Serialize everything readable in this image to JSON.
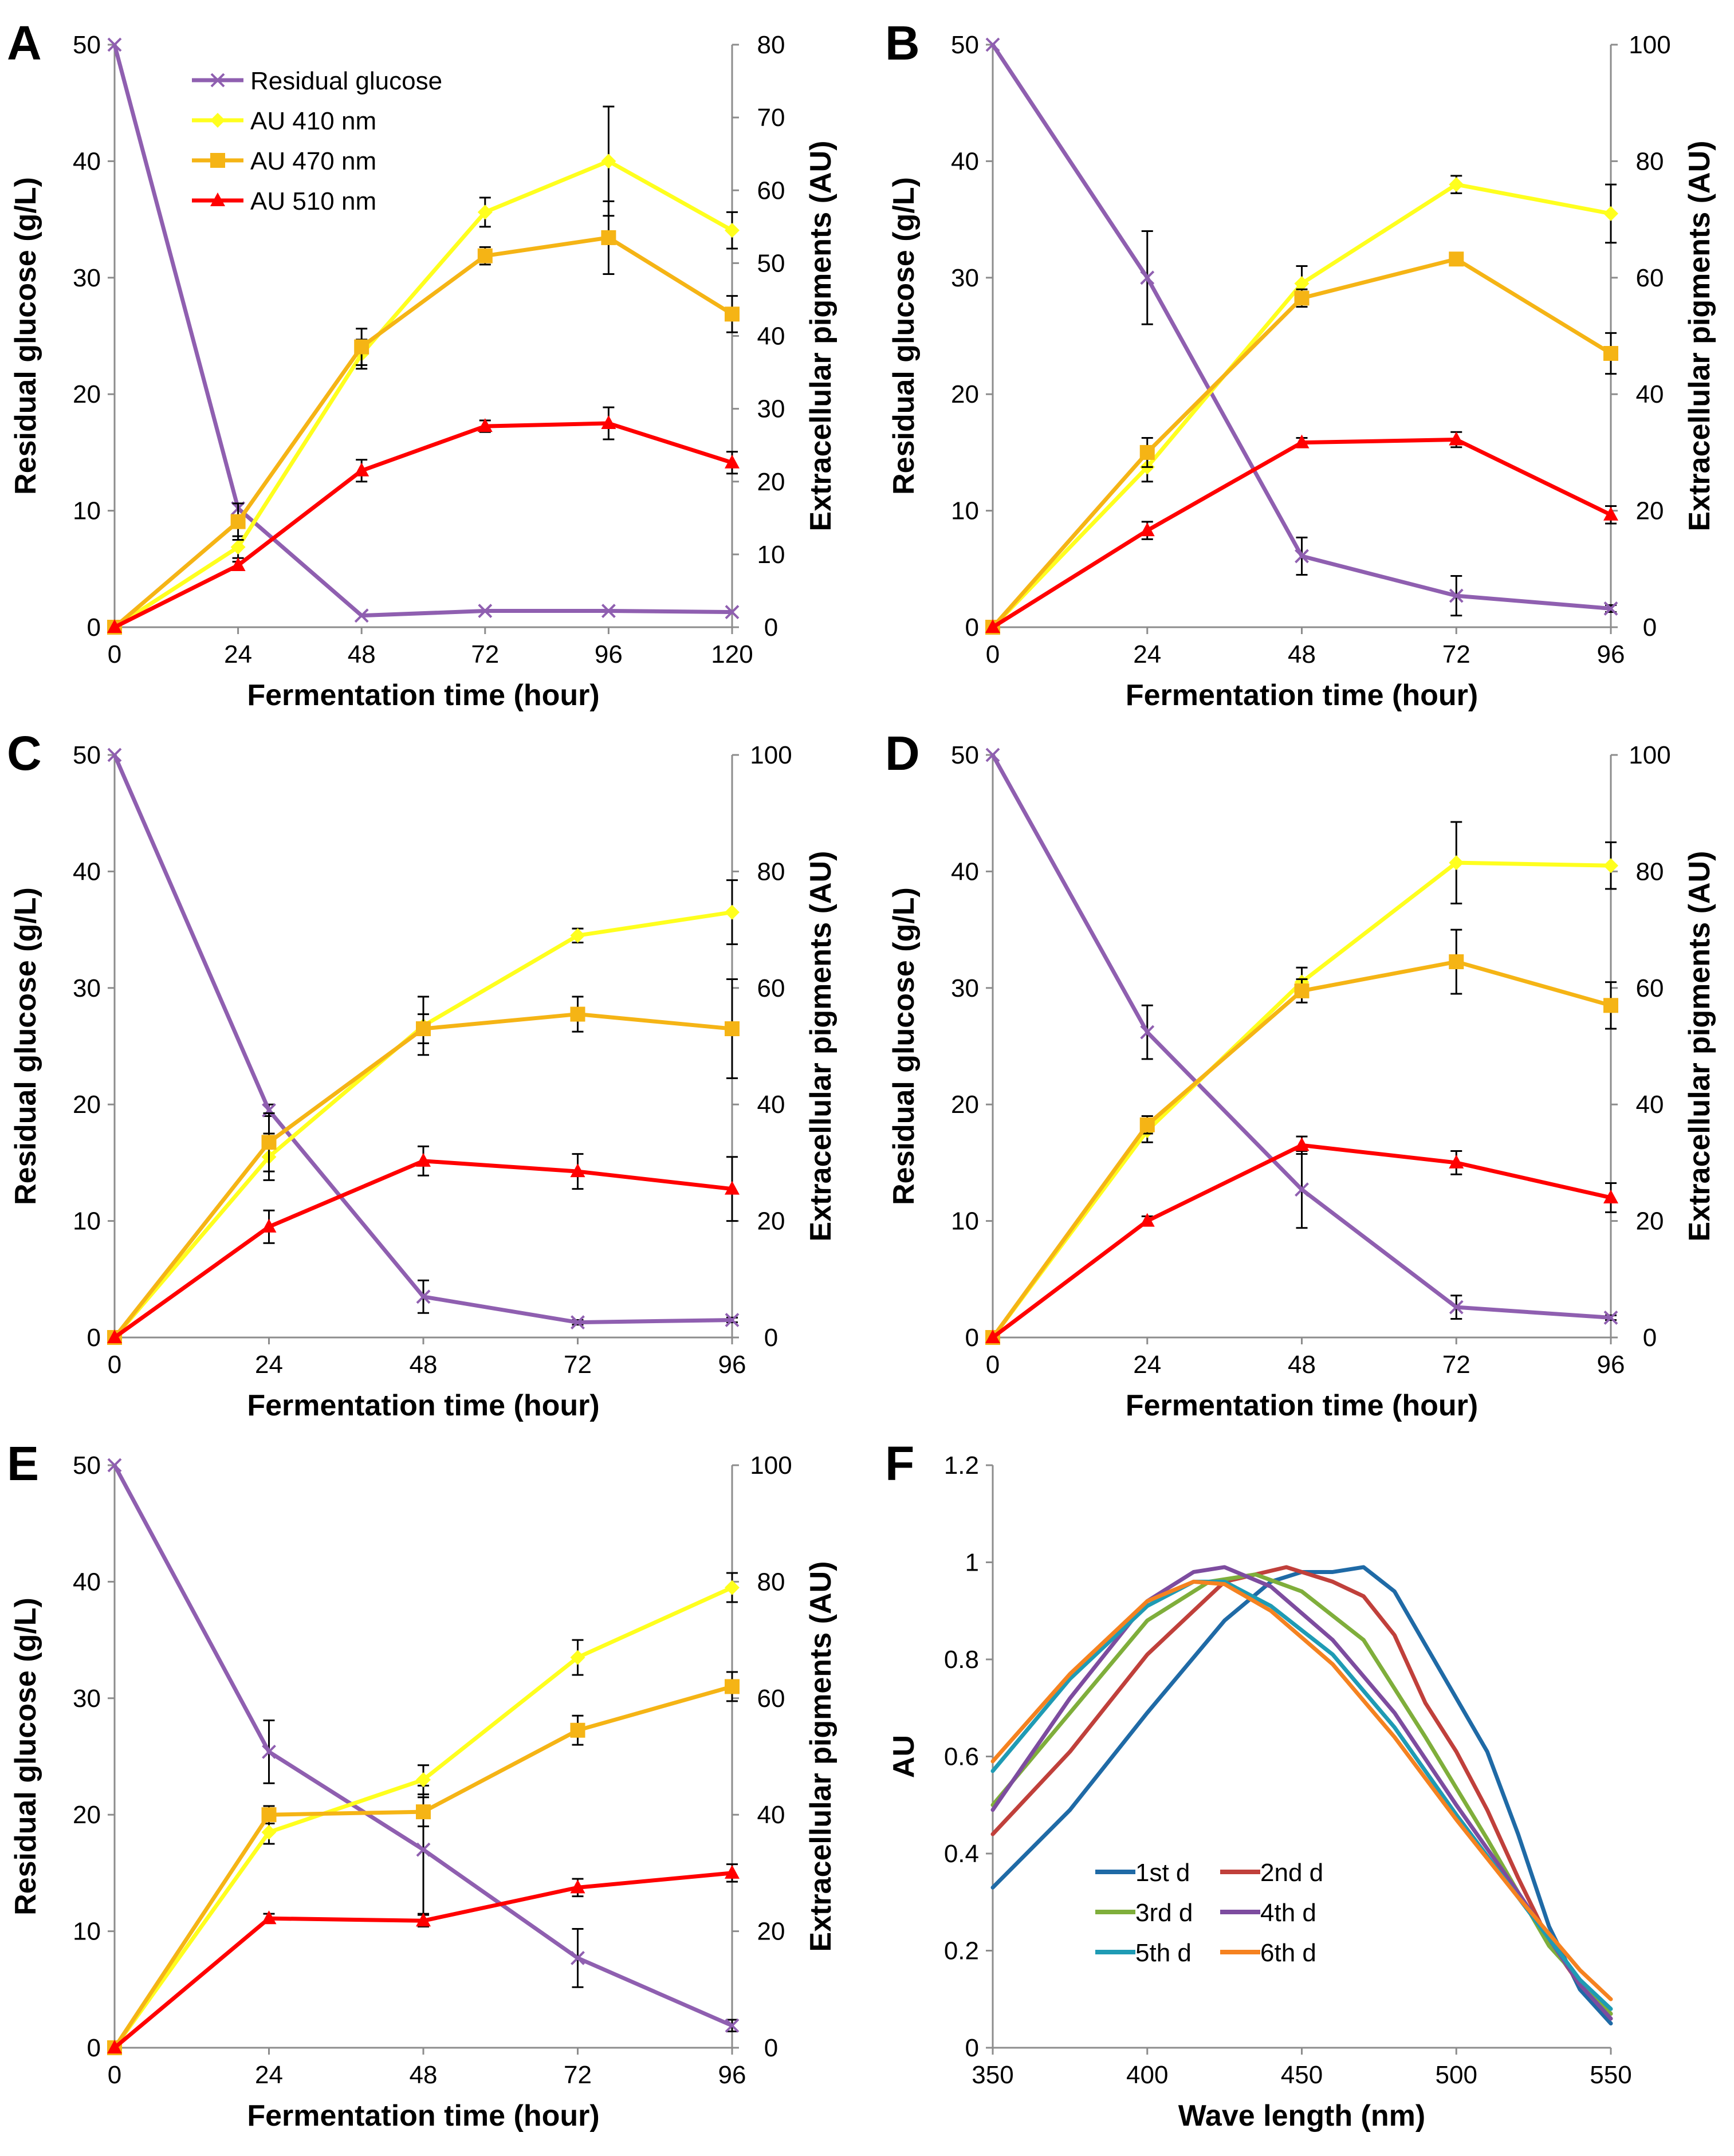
{
  "chart_data": [
    {
      "type": "line",
      "panel": "A",
      "xlabel": "Fermentation time (hour)",
      "ylabel": "Residual glucose (g/L)",
      "y2label": "Extracellular pigments (AU)",
      "x": [
        0,
        24,
        48,
        72,
        96,
        120
      ],
      "xticks": [
        "0",
        "24",
        "48",
        "72",
        "96",
        "120"
      ],
      "xlim": [
        0,
        120
      ],
      "ylim": [
        0,
        50
      ],
      "yticks": [
        0,
        10,
        20,
        30,
        40,
        50
      ],
      "y2lim": [
        0,
        80
      ],
      "y2ticks": [
        0,
        10,
        20,
        30,
        40,
        50,
        60,
        70,
        80
      ],
      "legend_position": "top-left",
      "series": [
        {
          "name": "Residual glucose",
          "axis": "left",
          "color": "#8f5fb0",
          "marker": "x",
          "values": [
            50,
            10.2,
            1.0,
            1.4,
            1.4,
            1.3
          ],
          "errors": [
            0,
            0,
            0,
            0,
            0,
            0
          ]
        },
        {
          "name": "AU 410 nm",
          "axis": "right",
          "color": "#ffff1e",
          "marker": "diamond",
          "values": [
            0,
            11.0,
            37.5,
            57.0,
            64.0,
            54.5
          ],
          "errors": [
            0,
            1.5,
            2.0,
            2.0,
            7.5,
            2.5
          ]
        },
        {
          "name": "AU 470 nm",
          "axis": "right",
          "color": "#f5b415",
          "marker": "square",
          "values": [
            0,
            14.5,
            38.5,
            51.0,
            53.5,
            43.0
          ],
          "errors": [
            0,
            2.5,
            2.5,
            1.2,
            5.0,
            2.5
          ]
        },
        {
          "name": "AU 510 nm",
          "axis": "right",
          "color": "#ff0000",
          "marker": "triangle",
          "values": [
            0,
            8.5,
            21.5,
            27.6,
            28.0,
            22.6
          ],
          "errors": [
            0,
            0.5,
            1.5,
            0.8,
            2.2,
            1.5
          ]
        }
      ]
    },
    {
      "type": "line",
      "panel": "B",
      "xlabel": "Fermentation time (hour)",
      "ylabel": "Residual glucose (g/L)",
      "y2label": "Extracellular pigments (AU)",
      "x": [
        0,
        24,
        48,
        72,
        96
      ],
      "xticks": [
        "0",
        "24",
        "48",
        "72",
        "96"
      ],
      "xlim": [
        0,
        96
      ],
      "ylim": [
        0,
        50
      ],
      "yticks": [
        0,
        10,
        20,
        30,
        40,
        50
      ],
      "y2lim": [
        0,
        100
      ],
      "y2ticks": [
        0,
        20,
        40,
        60,
        80,
        100
      ],
      "series": [
        {
          "name": "Residual glucose",
          "axis": "left",
          "color": "#8f5fb0",
          "marker": "x",
          "values": [
            50,
            30.0,
            6.1,
            2.7,
            1.6
          ],
          "errors": [
            0,
            4.0,
            1.6,
            1.7,
            0.3
          ]
        },
        {
          "name": "AU 410 nm",
          "axis": "right",
          "color": "#ffff1e",
          "marker": "diamond",
          "values": [
            0,
            27.5,
            59.0,
            76.0,
            71.0
          ],
          "errors": [
            0,
            2.5,
            3.0,
            1.5,
            5.0
          ]
        },
        {
          "name": "AU 470 nm",
          "axis": "right",
          "color": "#f5b415",
          "marker": "square",
          "values": [
            0,
            30.0,
            56.5,
            63.2,
            47.0
          ],
          "errors": [
            0,
            2.5,
            1.5,
            1.0,
            3.5
          ]
        },
        {
          "name": "AU 510 nm",
          "axis": "right",
          "color": "#ff0000",
          "marker": "triangle",
          "values": [
            0,
            16.6,
            31.7,
            32.2,
            19.3
          ],
          "errors": [
            0,
            1.5,
            0.8,
            1.3,
            1.5
          ]
        }
      ]
    },
    {
      "type": "line",
      "panel": "C",
      "xlabel": "Fermentation time (hour)",
      "ylabel": "Residual glucose (g/L)",
      "y2label": "Extracellular pigments (AU)",
      "x": [
        0,
        24,
        48,
        72,
        96
      ],
      "xticks": [
        "0",
        "24",
        "48",
        "72",
        "96"
      ],
      "xlim": [
        0,
        96
      ],
      "ylim": [
        0,
        50
      ],
      "yticks": [
        0,
        10,
        20,
        30,
        40,
        50
      ],
      "y2lim": [
        0,
        100
      ],
      "y2ticks": [
        0,
        20,
        40,
        60,
        80,
        100
      ],
      "series": [
        {
          "name": "Residual glucose",
          "axis": "left",
          "color": "#8f5fb0",
          "marker": "x",
          "values": [
            50,
            19.5,
            3.5,
            1.3,
            1.5
          ],
          "errors": [
            0,
            0.5,
            1.4,
            0.2,
            0.2
          ]
        },
        {
          "name": "AU 410 nm",
          "axis": "right",
          "color": "#ffff1e",
          "marker": "diamond",
          "values": [
            0,
            31.0,
            53.5,
            69.0,
            73.0
          ],
          "errors": [
            0,
            4.0,
            5.0,
            1.2,
            5.5
          ]
        },
        {
          "name": "AU 470 nm",
          "axis": "right",
          "color": "#f5b415",
          "marker": "square",
          "values": [
            0,
            33.5,
            53.0,
            55.5,
            53.0
          ],
          "errors": [
            0,
            5.0,
            2.5,
            3.0,
            8.5
          ]
        },
        {
          "name": "AU 510 nm",
          "axis": "right",
          "color": "#ff0000",
          "marker": "triangle",
          "values": [
            0,
            19.0,
            30.3,
            28.5,
            25.5
          ],
          "errors": [
            0,
            2.8,
            2.5,
            3.0,
            5.5
          ]
        }
      ]
    },
    {
      "type": "line",
      "panel": "D",
      "xlabel": "Fermentation time (hour)",
      "ylabel": "Residual glucose (g/L)",
      "y2label": "Extracellular pigments (AU)",
      "x": [
        0,
        24,
        48,
        72,
        96
      ],
      "xticks": [
        "0",
        "24",
        "48",
        "72",
        "96"
      ],
      "xlim": [
        0,
        96
      ],
      "ylim": [
        0,
        50
      ],
      "yticks": [
        0,
        10,
        20,
        30,
        40,
        50
      ],
      "y2lim": [
        0,
        100
      ],
      "y2ticks": [
        0,
        20,
        40,
        60,
        80,
        100
      ],
      "series": [
        {
          "name": "Residual glucose",
          "axis": "left",
          "color": "#8f5fb0",
          "marker": "x",
          "values": [
            50,
            26.2,
            12.7,
            2.6,
            1.7
          ],
          "errors": [
            0,
            2.3,
            3.3,
            1.0,
            0.2
          ]
        },
        {
          "name": "AU 410 nm",
          "axis": "right",
          "color": "#ffff1e",
          "marker": "diamond",
          "values": [
            0,
            35.5,
            61.0,
            81.5,
            81.0
          ],
          "errors": [
            0,
            2.0,
            2.5,
            7.0,
            4.0
          ]
        },
        {
          "name": "AU 470 nm",
          "axis": "right",
          "color": "#f5b415",
          "marker": "square",
          "values": [
            0,
            36.5,
            59.5,
            64.5,
            57.0
          ],
          "errors": [
            0,
            1.5,
            2.0,
            5.5,
            4.0
          ]
        },
        {
          "name": "AU 510 nm",
          "axis": "right",
          "color": "#ff0000",
          "marker": "triangle",
          "values": [
            0,
            20.0,
            33.0,
            30.0,
            24.0
          ],
          "errors": [
            0,
            0.8,
            1.5,
            2.0,
            2.5
          ]
        }
      ]
    },
    {
      "type": "line",
      "panel": "E",
      "xlabel": "Fermentation time (hour)",
      "ylabel": "Residual glucose (g/L)",
      "y2label": "Extracellular pigments (AU)",
      "x": [
        0,
        24,
        48,
        72,
        96
      ],
      "xticks": [
        "0",
        "24",
        "48",
        "72",
        "96"
      ],
      "xlim": [
        0,
        96
      ],
      "ylim": [
        0,
        50
      ],
      "yticks": [
        0,
        10,
        20,
        30,
        40,
        50
      ],
      "y2lim": [
        0,
        100
      ],
      "y2ticks": [
        0,
        20,
        40,
        60,
        80,
        100
      ],
      "series": [
        {
          "name": "Residual glucose",
          "axis": "left",
          "color": "#8f5fb0",
          "marker": "x",
          "values": [
            50,
            25.4,
            17.0,
            7.7,
            1.9
          ],
          "errors": [
            0,
            2.7,
            5.5,
            2.5,
            0.5
          ]
        },
        {
          "name": "AU 410 nm",
          "axis": "right",
          "color": "#ffff1e",
          "marker": "diamond",
          "values": [
            0,
            37.0,
            46.0,
            67.0,
            79.0
          ],
          "errors": [
            0,
            2.0,
            2.5,
            3.0,
            2.5
          ]
        },
        {
          "name": "AU 470 nm",
          "axis": "right",
          "color": "#f5b415",
          "marker": "square",
          "values": [
            0,
            40.0,
            40.5,
            54.5,
            62.0
          ],
          "errors": [
            0,
            1.5,
            2.5,
            2.5,
            2.5
          ]
        },
        {
          "name": "AU 510 nm",
          "axis": "right",
          "color": "#ff0000",
          "marker": "triangle",
          "values": [
            0,
            22.2,
            21.8,
            27.5,
            30.0
          ],
          "errors": [
            0,
            0.8,
            1.0,
            1.5,
            1.5
          ]
        }
      ]
    },
    {
      "type": "line",
      "panel": "F",
      "xlabel": "Wave length (nm)",
      "ylabel": "AU",
      "xlim": [
        350,
        550
      ],
      "xticks": [
        "350",
        "400",
        "450",
        "500",
        "550"
      ],
      "ylim": [
        0,
        1.2
      ],
      "yticks": [
        "0",
        "0.2",
        "0.4",
        "0.6",
        "0.8",
        "1",
        "1.2"
      ],
      "legend_position": "bottom-left",
      "series": [
        {
          "name": "1st d",
          "color": "#1f6aa6",
          "x": [
            350,
            375,
            400,
            425,
            440,
            450,
            460,
            470,
            480,
            490,
            500,
            510,
            520,
            530,
            540,
            550
          ],
          "values": [
            0.33,
            0.49,
            0.69,
            0.88,
            0.96,
            0.98,
            0.98,
            0.99,
            0.94,
            0.83,
            0.72,
            0.61,
            0.44,
            0.25,
            0.12,
            0.05
          ]
        },
        {
          "name": "2nd d",
          "color": "#c0403b",
          "x": [
            350,
            375,
            400,
            425,
            445,
            460,
            470,
            480,
            490,
            500,
            510,
            520,
            530,
            540,
            550
          ],
          "values": [
            0.44,
            0.61,
            0.81,
            0.96,
            0.99,
            0.96,
            0.93,
            0.85,
            0.71,
            0.61,
            0.49,
            0.35,
            0.22,
            0.13,
            0.07
          ]
        },
        {
          "name": "3rd d",
          "color": "#7fae3b",
          "x": [
            350,
            375,
            400,
            420,
            435,
            450,
            470,
            490,
            510,
            530,
            550
          ],
          "values": [
            0.5,
            0.69,
            0.88,
            0.96,
            0.975,
            0.94,
            0.84,
            0.64,
            0.43,
            0.21,
            0.07
          ]
        },
        {
          "name": "4th d",
          "color": "#7d4c9f",
          "x": [
            350,
            375,
            400,
            415,
            425,
            440,
            460,
            480,
            500,
            520,
            540,
            550
          ],
          "values": [
            0.49,
            0.72,
            0.92,
            0.98,
            0.99,
            0.95,
            0.84,
            0.69,
            0.5,
            0.32,
            0.13,
            0.06
          ]
        },
        {
          "name": "5th d",
          "color": "#1f9bb4",
          "x": [
            350,
            375,
            400,
            415,
            425,
            440,
            460,
            480,
            500,
            520,
            540,
            550
          ],
          "values": [
            0.57,
            0.76,
            0.91,
            0.96,
            0.96,
            0.91,
            0.81,
            0.66,
            0.48,
            0.31,
            0.14,
            0.08
          ]
        },
        {
          "name": "6th d",
          "color": "#f58220",
          "x": [
            350,
            375,
            400,
            415,
            425,
            440,
            460,
            480,
            500,
            520,
            540,
            550
          ],
          "values": [
            0.59,
            0.77,
            0.92,
            0.96,
            0.955,
            0.9,
            0.79,
            0.64,
            0.47,
            0.31,
            0.16,
            0.1
          ]
        }
      ]
    }
  ]
}
